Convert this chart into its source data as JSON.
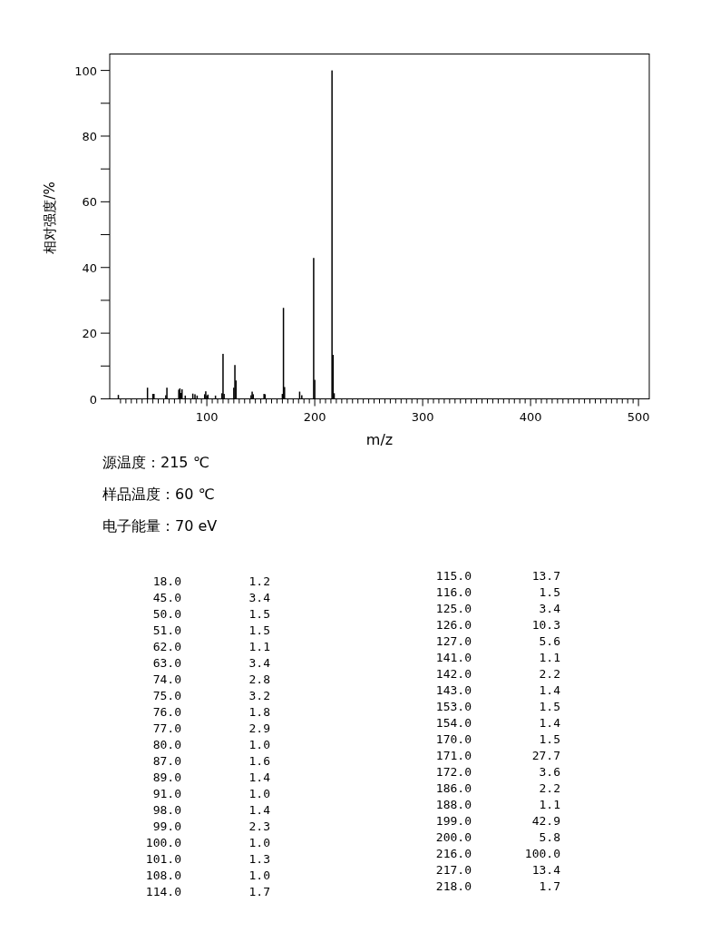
{
  "chart_data": [
    {
      "type": "bar",
      "xlabel": "m/z",
      "ylabel": "相对强度/%",
      "x": [
        18,
        45,
        50,
        51,
        62,
        63,
        74,
        75,
        76,
        77,
        80,
        87,
        89,
        91,
        98,
        99,
        100,
        101,
        108,
        114,
        115,
        116,
        125,
        126,
        127,
        141,
        142,
        143,
        153,
        154,
        170,
        171,
        172,
        186,
        188,
        199,
        200,
        216,
        217,
        218
      ],
      "values": [
        1.2,
        3.4,
        1.5,
        1.5,
        1.1,
        3.4,
        2.8,
        3.2,
        1.8,
        2.9,
        1.0,
        1.6,
        1.4,
        1.0,
        1.4,
        2.3,
        1.0,
        1.3,
        1.0,
        1.7,
        13.7,
        1.5,
        3.4,
        10.3,
        5.6,
        1.1,
        2.2,
        1.4,
        1.5,
        1.4,
        1.5,
        27.7,
        3.6,
        2.2,
        1.1,
        42.9,
        5.8,
        100.0,
        13.4,
        1.7
      ],
      "color": "#000000",
      "xlim": [
        10,
        510
      ],
      "xticks": [
        {
          "value": 20,
          "label": null
        },
        {
          "value": 25,
          "label": null
        },
        {
          "value": 30,
          "label": null
        },
        {
          "value": 35,
          "label": null
        },
        {
          "value": 40,
          "label": null
        },
        {
          "value": 45,
          "label": null
        },
        {
          "value": 50,
          "label": null
        },
        {
          "value": 55,
          "label": null
        },
        {
          "value": 60,
          "label": null
        },
        {
          "value": 65,
          "label": null
        },
        {
          "value": 70,
          "label": null
        },
        {
          "value": 75,
          "label": null
        },
        {
          "value": 80,
          "label": null
        },
        {
          "value": 85,
          "label": null
        },
        {
          "value": 90,
          "label": null
        },
        {
          "value": 95,
          "label": null
        },
        100,
        {
          "value": 105,
          "label": null
        },
        {
          "value": 110,
          "label": null
        },
        {
          "value": 115,
          "label": null
        },
        {
          "value": 120,
          "label": null
        },
        {
          "value": 125,
          "label": null
        },
        {
          "value": 130,
          "label": null
        },
        {
          "value": 135,
          "label": null
        },
        {
          "value": 140,
          "label": null
        },
        {
          "value": 145,
          "label": null
        },
        {
          "value": 150,
          "label": null
        },
        {
          "value": 155,
          "label": null
        },
        {
          "value": 160,
          "label": null
        },
        {
          "value": 165,
          "label": null
        },
        {
          "value": 170,
          "label": null
        },
        {
          "value": 175,
          "label": null
        },
        {
          "value": 180,
          "label": null
        },
        {
          "value": 185,
          "label": null
        },
        {
          "value": 190,
          "label": null
        },
        {
          "value": 195,
          "label": null
        },
        200,
        {
          "value": 205,
          "label": null
        },
        {
          "value": 210,
          "label": null
        },
        {
          "value": 215,
          "label": null
        },
        {
          "value": 220,
          "label": null
        },
        {
          "value": 225,
          "label": null
        },
        {
          "value": 230,
          "label": null
        },
        {
          "value": 235,
          "label": null
        },
        {
          "value": 240,
          "label": null
        },
        {
          "value": 245,
          "label": null
        },
        {
          "value": 250,
          "label": null
        },
        {
          "value": 255,
          "label": null
        },
        {
          "value": 260,
          "label": null
        },
        {
          "value": 265,
          "label": null
        },
        {
          "value": 270,
          "label": null
        },
        {
          "value": 275,
          "label": null
        },
        {
          "value": 280,
          "label": null
        },
        {
          "value": 285,
          "label": null
        },
        {
          "value": 290,
          "label": null
        },
        {
          "value": 295,
          "label": null
        },
        300,
        {
          "value": 305,
          "label": null
        },
        {
          "value": 310,
          "label": null
        },
        {
          "value": 315,
          "label": null
        },
        {
          "value": 320,
          "label": null
        },
        {
          "value": 325,
          "label": null
        },
        {
          "value": 330,
          "label": null
        },
        {
          "value": 335,
          "label": null
        },
        {
          "value": 340,
          "label": null
        },
        {
          "value": 345,
          "label": null
        },
        {
          "value": 350,
          "label": null
        },
        {
          "value": 355,
          "label": null
        },
        {
          "value": 360,
          "label": null
        },
        {
          "value": 365,
          "label": null
        },
        {
          "value": 370,
          "label": null
        },
        {
          "value": 375,
          "label": null
        },
        {
          "value": 380,
          "label": null
        },
        {
          "value": 385,
          "label": null
        },
        {
          "value": 390,
          "label": null
        },
        {
          "value": 395,
          "label": null
        },
        400,
        {
          "value": 405,
          "label": null
        },
        {
          "value": 410,
          "label": null
        },
        {
          "value": 415,
          "label": null
        },
        {
          "value": 420,
          "label": null
        },
        {
          "value": 425,
          "label": null
        },
        {
          "value": 430,
          "label": null
        },
        {
          "value": 435,
          "label": null
        },
        {
          "value": 440,
          "label": null
        },
        {
          "value": 445,
          "label": null
        },
        {
          "value": 450,
          "label": null
        },
        {
          "value": 455,
          "label": null
        },
        {
          "value": 460,
          "label": null
        },
        {
          "value": 465,
          "label": null
        },
        {
          "value": 470,
          "label": null
        },
        {
          "value": 475,
          "label": null
        },
        {
          "value": 480,
          "label": null
        },
        {
          "value": 485,
          "label": null
        },
        {
          "value": 490,
          "label": null
        },
        {
          "value": 495,
          "label": null
        },
        500
      ],
      "ylim": [
        0,
        105
      ],
      "yticks": [
        0,
        {
          "value": 10,
          "label": null
        },
        20,
        {
          "value": 30,
          "label": null
        },
        40,
        {
          "value": 50,
          "label": null
        },
        60,
        {
          "value": 70,
          "label": null
        },
        80,
        {
          "value": 90,
          "label": null
        },
        100
      ],
      "annotations": [
        "源温度：215 ℃",
        "样品温度：60 ℃",
        "电子能量：70 eV"
      ]
    },
    {
      "type": "other",
      "annotations": [
        "18.0",
        "1.2",
        "45.0",
        "3.4",
        "50.0",
        "1.5",
        "51.0",
        "1.5",
        "62.0",
        "1.1",
        "63.0",
        "3.4",
        "74.0",
        "2.8",
        "75.0",
        "3.2",
        "76.0",
        "1.8",
        "77.0",
        "2.9",
        "80.0",
        "1.0",
        "87.0",
        "1.6",
        "89.0",
        "1.4",
        "91.0",
        "1.0",
        "98.0",
        "1.4",
        "99.0",
        "2.3",
        "100.0",
        "1.0",
        "101.0",
        "1.3",
        "108.0",
        "1.0",
        "114.0",
        "1.7",
        "115.0",
        "13.7",
        "116.0",
        "1.5",
        "125.0",
        "3.4",
        "126.0",
        "10.3",
        "127.0",
        "5.6",
        "141.0",
        "1.1",
        "142.0",
        "2.2",
        "143.0",
        "1.4",
        "153.0",
        "1.5",
        "154.0",
        "1.4",
        "170.0",
        "1.5",
        "171.0",
        "27.7",
        "172.0",
        "3.6",
        "186.0",
        "2.2",
        "188.0",
        "1.1",
        "199.0",
        "42.9",
        "200.0",
        "5.8",
        "216.0",
        "100.0",
        "217.0",
        "13.4",
        "218.0",
        "1.7"
      ]
    }
  ]
}
